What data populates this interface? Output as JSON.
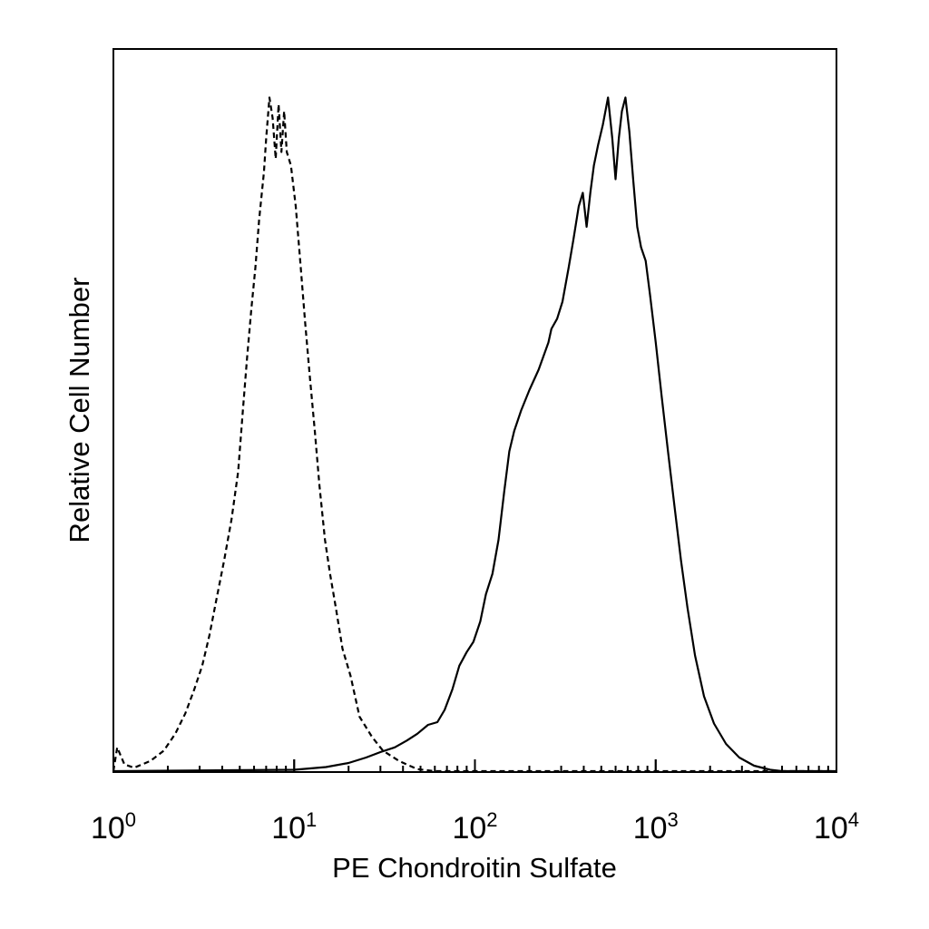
{
  "chart_data": {
    "type": "line",
    "title": "",
    "xlabel": "PE Chondroitin Sulfate",
    "ylabel": "Relative Cell Number",
    "x_scale": "log",
    "xlim": [
      1,
      10000
    ],
    "ylim": [
      0,
      100
    ],
    "x_ticks": [
      {
        "value": 1,
        "base": "10",
        "exponent": "0"
      },
      {
        "value": 10,
        "base": "10",
        "exponent": "1"
      },
      {
        "value": 100,
        "base": "10",
        "exponent": "2"
      },
      {
        "value": 1000,
        "base": "10",
        "exponent": "3"
      },
      {
        "value": 10000,
        "base": "10",
        "exponent": "4"
      }
    ],
    "grid": false,
    "legend": "none",
    "series": [
      {
        "style": "dashed",
        "color": "#000000",
        "points": [
          [
            1.0,
            0
          ],
          [
            1.05,
            3.5
          ],
          [
            1.15,
            1
          ],
          [
            1.3,
            0.5
          ],
          [
            1.6,
            1.5
          ],
          [
            1.9,
            3
          ],
          [
            2.2,
            5.5
          ],
          [
            2.5,
            8.5
          ],
          [
            2.8,
            12
          ],
          [
            3.1,
            15.5
          ],
          [
            3.4,
            20
          ],
          [
            3.7,
            25
          ],
          [
            4.1,
            31
          ],
          [
            4.5,
            37
          ],
          [
            4.9,
            44
          ],
          [
            5.2,
            53
          ],
          [
            5.5,
            61
          ],
          [
            5.8,
            68
          ],
          [
            6.1,
            74
          ],
          [
            6.4,
            81
          ],
          [
            6.8,
            88
          ],
          [
            7.0,
            93
          ],
          [
            7.3,
            99
          ],
          [
            7.6,
            96
          ],
          [
            7.9,
            90
          ],
          [
            8.2,
            98
          ],
          [
            8.5,
            91
          ],
          [
            8.8,
            97
          ],
          [
            9.1,
            91
          ],
          [
            9.6,
            89
          ],
          [
            10.2,
            83
          ],
          [
            10.8,
            75
          ],
          [
            11.5,
            66
          ],
          [
            12.2,
            58
          ],
          [
            13.0,
            50
          ],
          [
            13.8,
            42
          ],
          [
            14.8,
            34
          ],
          [
            15.8,
            29
          ],
          [
            17.0,
            24
          ],
          [
            18.5,
            18
          ],
          [
            20.5,
            14
          ],
          [
            23.0,
            8
          ],
          [
            27.0,
            5
          ],
          [
            31.0,
            3
          ],
          [
            38.0,
            1.5
          ],
          [
            48.0,
            0.3
          ],
          [
            60.0,
            0
          ],
          [
            10000,
            0
          ]
        ]
      },
      {
        "style": "solid",
        "color": "#000000",
        "points": [
          [
            1.0,
            0
          ],
          [
            10.0,
            0.2
          ],
          [
            15.0,
            0.6
          ],
          [
            20.0,
            1.2
          ],
          [
            25.0,
            2
          ],
          [
            30.0,
            2.8
          ],
          [
            36.0,
            3.5
          ],
          [
            42.0,
            4.5
          ],
          [
            48.0,
            5.5
          ],
          [
            55.0,
            6.8
          ],
          [
            62.0,
            7.2
          ],
          [
            68.0,
            9
          ],
          [
            75.0,
            12
          ],
          [
            82.0,
            15.5
          ],
          [
            90.0,
            17.5
          ],
          [
            98.0,
            19
          ],
          [
            107.0,
            22
          ],
          [
            115.0,
            26
          ],
          [
            125.0,
            29
          ],
          [
            135.0,
            34
          ],
          [
            145.0,
            41
          ],
          [
            155.0,
            47
          ],
          [
            165.0,
            50
          ],
          [
            180.0,
            53
          ],
          [
            200.0,
            56
          ],
          [
            225.0,
            59
          ],
          [
            255.0,
            63
          ],
          [
            265.0,
            65
          ],
          [
            285.0,
            66.5
          ],
          [
            305.0,
            69
          ],
          [
            330.0,
            74
          ],
          [
            350.0,
            78
          ],
          [
            375.0,
            83
          ],
          [
            395.0,
            85
          ],
          [
            415.0,
            80
          ],
          [
            435.0,
            85
          ],
          [
            455.0,
            89
          ],
          [
            480.0,
            92
          ],
          [
            510.0,
            95
          ],
          [
            545.0,
            99
          ],
          [
            575.0,
            93
          ],
          [
            600.0,
            87
          ],
          [
            625.0,
            93
          ],
          [
            650.0,
            97
          ],
          [
            680.0,
            99
          ],
          [
            715.0,
            94
          ],
          [
            750.0,
            87
          ],
          [
            790.0,
            80
          ],
          [
            830.0,
            77
          ],
          [
            880.0,
            75
          ],
          [
            930.0,
            70
          ],
          [
            1000.0,
            63
          ],
          [
            1080.0,
            55
          ],
          [
            1170.0,
            47
          ],
          [
            1270.0,
            39
          ],
          [
            1380.0,
            31
          ],
          [
            1500.0,
            24
          ],
          [
            1650.0,
            17
          ],
          [
            1850.0,
            11
          ],
          [
            2100.0,
            7
          ],
          [
            2450.0,
            4
          ],
          [
            2900.0,
            2
          ],
          [
            3500.0,
            0.8
          ],
          [
            4300.0,
            0.2
          ],
          [
            5000.0,
            0
          ],
          [
            10000,
            0
          ]
        ]
      }
    ]
  }
}
